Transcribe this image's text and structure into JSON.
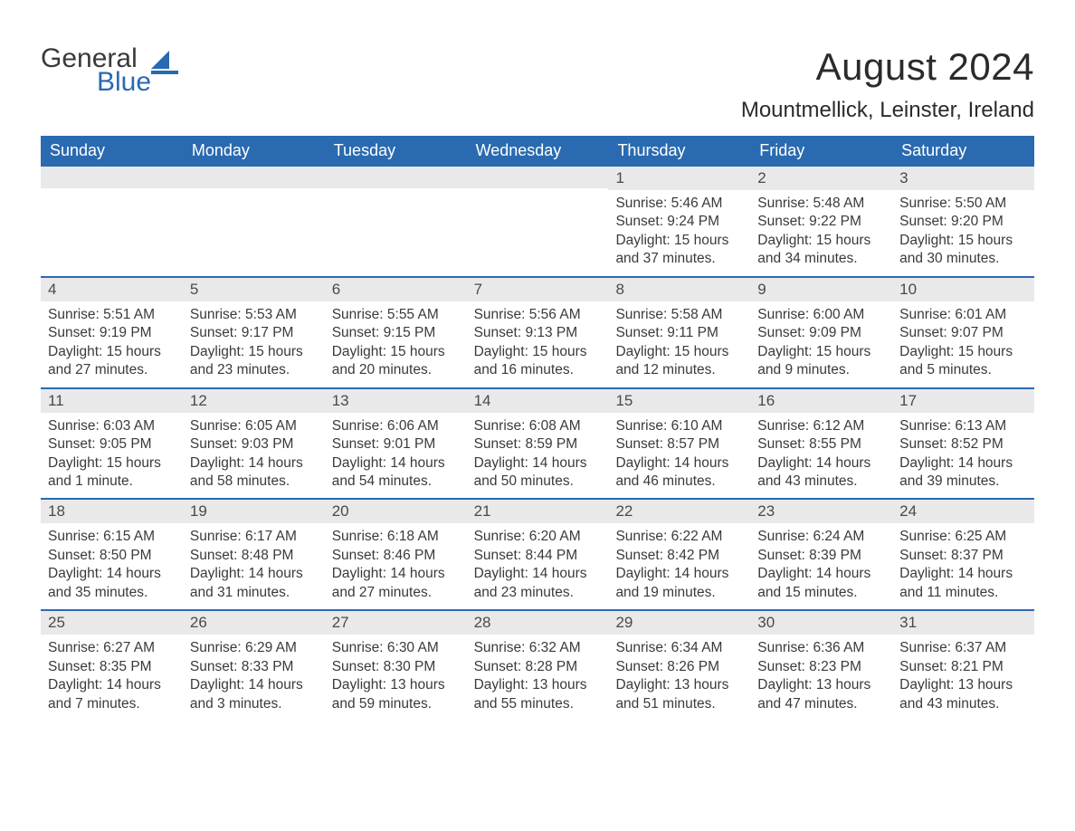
{
  "logo": {
    "word1": "General",
    "word2": "Blue",
    "sail_color": "#2a6ab0"
  },
  "title": "August 2024",
  "location": "Mountmellick, Leinster, Ireland",
  "colors": {
    "header_bg": "#2a6ab0",
    "header_text": "#ffffff",
    "daynum_bg": "#e9e9e9",
    "week_divider": "#2a6ab0",
    "body_text": "#3a3a3a",
    "page_bg": "#ffffff"
  },
  "typography": {
    "title_fontsize": 42,
    "location_fontsize": 24,
    "dayheader_fontsize": 18,
    "daynum_fontsize": 17,
    "body_fontsize": 15.5,
    "font_family": "Arial"
  },
  "layout": {
    "columns": 7,
    "rows": 5,
    "leading_blanks": 4
  },
  "day_headers": [
    "Sunday",
    "Monday",
    "Tuesday",
    "Wednesday",
    "Thursday",
    "Friday",
    "Saturday"
  ],
  "days": [
    {
      "n": "1",
      "sunrise": "5:46 AM",
      "sunset": "9:24 PM",
      "dl_h": 15,
      "dl_m": 37
    },
    {
      "n": "2",
      "sunrise": "5:48 AM",
      "sunset": "9:22 PM",
      "dl_h": 15,
      "dl_m": 34
    },
    {
      "n": "3",
      "sunrise": "5:50 AM",
      "sunset": "9:20 PM",
      "dl_h": 15,
      "dl_m": 30
    },
    {
      "n": "4",
      "sunrise": "5:51 AM",
      "sunset": "9:19 PM",
      "dl_h": 15,
      "dl_m": 27
    },
    {
      "n": "5",
      "sunrise": "5:53 AM",
      "sunset": "9:17 PM",
      "dl_h": 15,
      "dl_m": 23
    },
    {
      "n": "6",
      "sunrise": "5:55 AM",
      "sunset": "9:15 PM",
      "dl_h": 15,
      "dl_m": 20
    },
    {
      "n": "7",
      "sunrise": "5:56 AM",
      "sunset": "9:13 PM",
      "dl_h": 15,
      "dl_m": 16
    },
    {
      "n": "8",
      "sunrise": "5:58 AM",
      "sunset": "9:11 PM",
      "dl_h": 15,
      "dl_m": 12
    },
    {
      "n": "9",
      "sunrise": "6:00 AM",
      "sunset": "9:09 PM",
      "dl_h": 15,
      "dl_m": 9
    },
    {
      "n": "10",
      "sunrise": "6:01 AM",
      "sunset": "9:07 PM",
      "dl_h": 15,
      "dl_m": 5
    },
    {
      "n": "11",
      "sunrise": "6:03 AM",
      "sunset": "9:05 PM",
      "dl_h": 15,
      "dl_m": 1
    },
    {
      "n": "12",
      "sunrise": "6:05 AM",
      "sunset": "9:03 PM",
      "dl_h": 14,
      "dl_m": 58
    },
    {
      "n": "13",
      "sunrise": "6:06 AM",
      "sunset": "9:01 PM",
      "dl_h": 14,
      "dl_m": 54
    },
    {
      "n": "14",
      "sunrise": "6:08 AM",
      "sunset": "8:59 PM",
      "dl_h": 14,
      "dl_m": 50
    },
    {
      "n": "15",
      "sunrise": "6:10 AM",
      "sunset": "8:57 PM",
      "dl_h": 14,
      "dl_m": 46
    },
    {
      "n": "16",
      "sunrise": "6:12 AM",
      "sunset": "8:55 PM",
      "dl_h": 14,
      "dl_m": 43
    },
    {
      "n": "17",
      "sunrise": "6:13 AM",
      "sunset": "8:52 PM",
      "dl_h": 14,
      "dl_m": 39
    },
    {
      "n": "18",
      "sunrise": "6:15 AM",
      "sunset": "8:50 PM",
      "dl_h": 14,
      "dl_m": 35
    },
    {
      "n": "19",
      "sunrise": "6:17 AM",
      "sunset": "8:48 PM",
      "dl_h": 14,
      "dl_m": 31
    },
    {
      "n": "20",
      "sunrise": "6:18 AM",
      "sunset": "8:46 PM",
      "dl_h": 14,
      "dl_m": 27
    },
    {
      "n": "21",
      "sunrise": "6:20 AM",
      "sunset": "8:44 PM",
      "dl_h": 14,
      "dl_m": 23
    },
    {
      "n": "22",
      "sunrise": "6:22 AM",
      "sunset": "8:42 PM",
      "dl_h": 14,
      "dl_m": 19
    },
    {
      "n": "23",
      "sunrise": "6:24 AM",
      "sunset": "8:39 PM",
      "dl_h": 14,
      "dl_m": 15
    },
    {
      "n": "24",
      "sunrise": "6:25 AM",
      "sunset": "8:37 PM",
      "dl_h": 14,
      "dl_m": 11
    },
    {
      "n": "25",
      "sunrise": "6:27 AM",
      "sunset": "8:35 PM",
      "dl_h": 14,
      "dl_m": 7
    },
    {
      "n": "26",
      "sunrise": "6:29 AM",
      "sunset": "8:33 PM",
      "dl_h": 14,
      "dl_m": 3
    },
    {
      "n": "27",
      "sunrise": "6:30 AM",
      "sunset": "8:30 PM",
      "dl_h": 13,
      "dl_m": 59
    },
    {
      "n": "28",
      "sunrise": "6:32 AM",
      "sunset": "8:28 PM",
      "dl_h": 13,
      "dl_m": 55
    },
    {
      "n": "29",
      "sunrise": "6:34 AM",
      "sunset": "8:26 PM",
      "dl_h": 13,
      "dl_m": 51
    },
    {
      "n": "30",
      "sunrise": "6:36 AM",
      "sunset": "8:23 PM",
      "dl_h": 13,
      "dl_m": 47
    },
    {
      "n": "31",
      "sunrise": "6:37 AM",
      "sunset": "8:21 PM",
      "dl_h": 13,
      "dl_m": 43
    }
  ],
  "labels": {
    "sunrise": "Sunrise:",
    "sunset": "Sunset:",
    "daylight": "Daylight:"
  }
}
